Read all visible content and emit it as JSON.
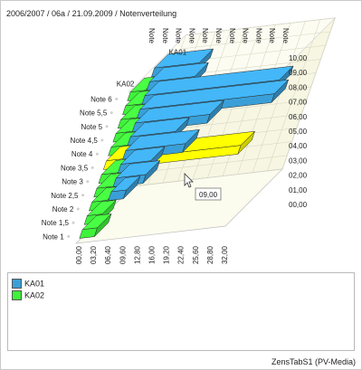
{
  "header": {
    "title": "2006/2007 / 06a / 21.09.2009 / Notenverteilung"
  },
  "footer": {
    "text": "ZensTabS1 (PV-Media)"
  },
  "tooltip": {
    "text": "09,00"
  },
  "colors": {
    "KA01": "#3a9fd8",
    "KA02": "#3ff23a",
    "highlight": "#ffff00"
  },
  "legend": {
    "items": [
      {
        "label": "KA01",
        "color": "#3a9fd8"
      },
      {
        "label": "KA02",
        "color": "#3ff23a"
      }
    ]
  },
  "chart_data": {
    "type": "bar",
    "orientation": "horizontal-3d",
    "categories": [
      "Note 1",
      "Note 1,5",
      "Note 2",
      "Note 2,5",
      "Note 3",
      "Note 3,5",
      "Note 4",
      "Note 4,5",
      "Note 5",
      "Note 5,5",
      "Note 6"
    ],
    "series": [
      {
        "name": "KA01",
        "values": [
          0,
          1,
          2,
          2,
          4,
          3,
          5,
          9,
          9,
          3,
          3
        ]
      },
      {
        "name": "KA02",
        "values": [
          1,
          1,
          1,
          2,
          2,
          9,
          3,
          3,
          4,
          2,
          1
        ]
      }
    ],
    "bottom_axis_ticks": [
      "00,00",
      "03,20",
      "06,40",
      "09,60",
      "12,80",
      "16,00",
      "19,20",
      "22,40",
      "25,60",
      "28,80",
      "32,00"
    ],
    "right_axis_ticks": [
      "00,00",
      "01,00",
      "02,00",
      "03,00",
      "04,00",
      "05,00",
      "06,00",
      "07,00",
      "08,00",
      "09,00",
      "10,00"
    ],
    "top_labels": [
      "Note",
      "Note",
      "Note",
      "Note",
      "Note",
      "Note",
      "Note",
      "Note",
      "Note",
      "Note",
      "Note"
    ],
    "highlighted": {
      "series": "KA02",
      "category": "Note 3,5",
      "value": "09,00"
    },
    "legend_position": "bottom",
    "grid": true
  }
}
